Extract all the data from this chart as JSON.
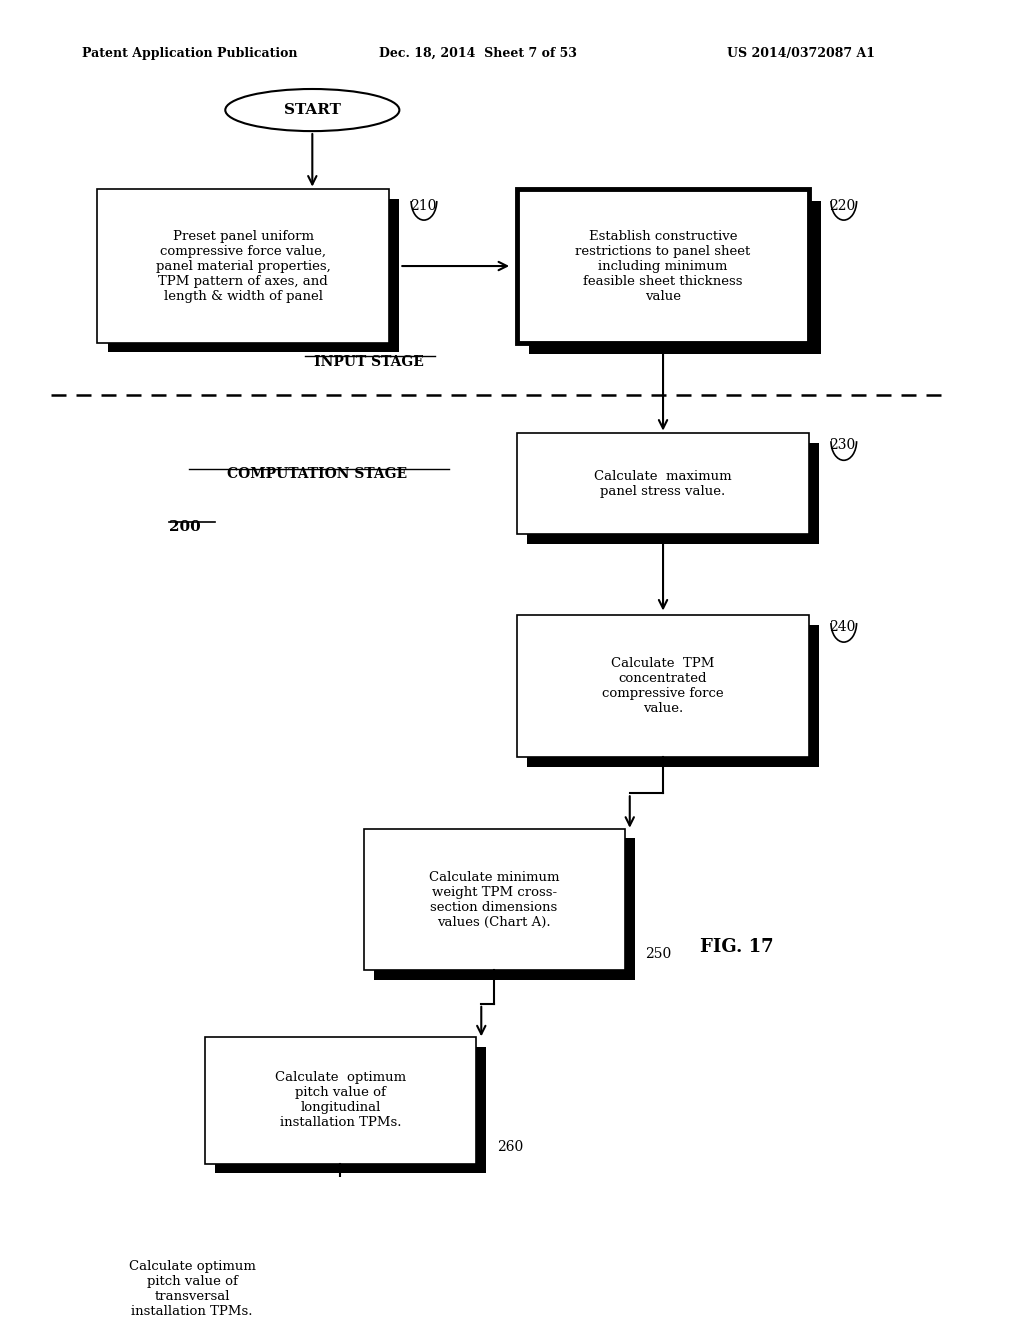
{
  "header_left": "Patent Application Publication",
  "header_center": "Dec. 18, 2014  Sheet 7 of 53",
  "header_right": "US 2014/0372087 A1",
  "fig_label": "FIG. 17",
  "diagram_label": "200",
  "start_label": "START",
  "input_stage_label": "INPUT STAGE",
  "computation_stage_label": "COMPUTATION STAGE",
  "box210_text": "Preset panel uniform\ncompressive force value,\npanel material properties,\nTPM pattern of axes, and\nlength & width of panel",
  "box220_text": "Establish constructive\nrestrictions to panel sheet\nincluding minimum\nfeasible sheet thickness\nvalue",
  "box230_text": "Calculate  maximum\npanel stress value.",
  "box240_text": "Calculate  TPM\nconcentrated\ncompressive force\nvalue.",
  "box250_text": "Calculate minimum\nweight TPM cross-\nsection dimensions\nvalues (Chart A).",
  "box260_text": "Calculate  optimum\npitch value of\nlongitudinal\ninstallation TPMs.",
  "box270_text": "Calculate optimum\npitch value of\ntransversal\ninstallation TPMs."
}
